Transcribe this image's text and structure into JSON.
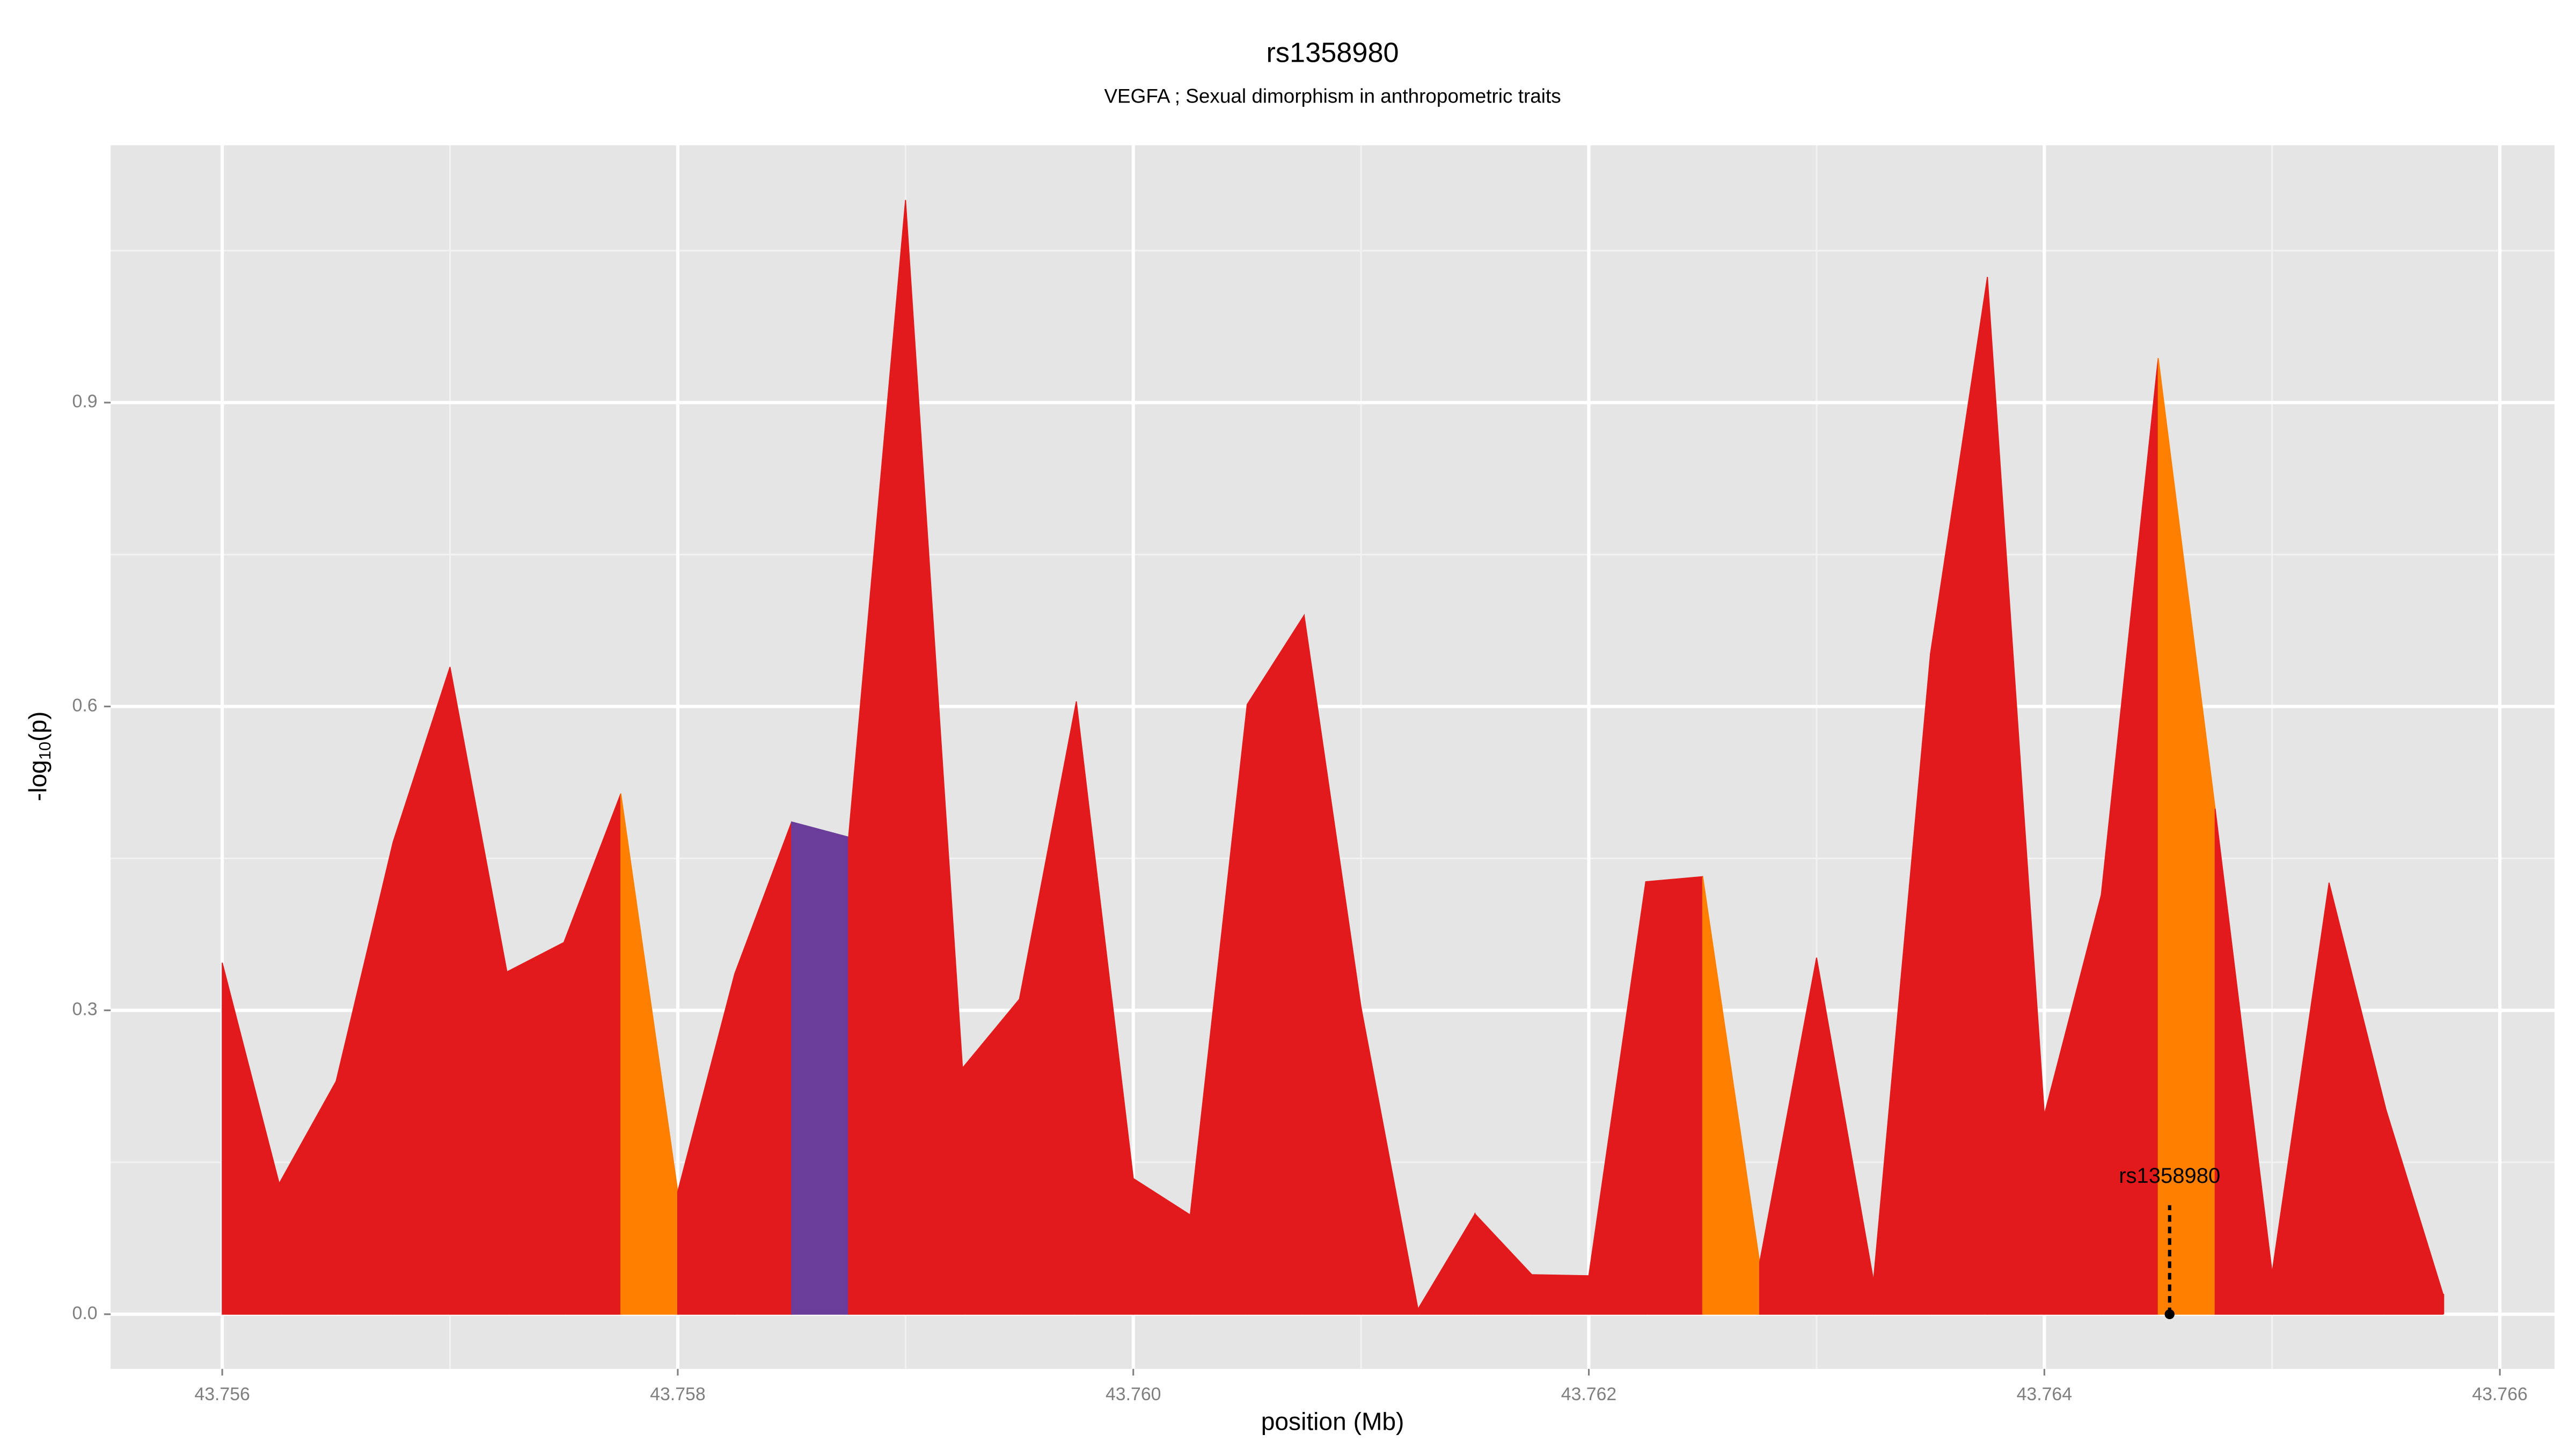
{
  "chart_data": {
    "type": "area",
    "title": "rs1358980",
    "subtitle": "VEGFA ; Sexual dimorphism in anthropometric traits",
    "x_label": "position (Mb)",
    "y_label": [
      "-log",
      "10",
      "(p)"
    ],
    "x": [
      43.756,
      43.75625,
      43.7565,
      43.75675,
      43.757,
      43.75725,
      43.7575,
      43.75775,
      43.758,
      43.75825,
      43.7585,
      43.75875,
      43.759,
      43.75925,
      43.7595,
      43.75975,
      43.76,
      43.76025,
      43.7605,
      43.76075,
      43.761,
      43.76125,
      43.7615,
      43.76175,
      43.762,
      43.76225,
      43.7625,
      43.76275,
      43.763,
      43.76325,
      43.7635,
      43.76375,
      43.764,
      43.76425,
      43.7645,
      43.76475,
      43.765,
      43.76525,
      43.7655,
      43.76575
    ],
    "values": [
      0.347,
      0.129,
      0.23,
      0.466,
      0.639,
      0.338,
      0.367,
      0.514,
      0.121,
      0.336,
      0.486,
      0.471,
      1.1,
      0.243,
      0.311,
      0.605,
      0.134,
      0.098,
      0.602,
      0.69,
      0.303,
      0.005,
      0.099,
      0.039,
      0.038,
      0.427,
      0.432,
      0.051,
      0.352,
      0.033,
      0.652,
      1.024,
      0.197,
      0.414,
      0.944,
      0.499,
      0.041,
      0.426,
      0.202,
      0.02
    ],
    "colors": [
      "#e31a1c",
      "#e31a1c",
      "#e31a1c",
      "#e31a1c",
      "#e31a1c",
      "#e31a1c",
      "#e31a1c",
      "#ff7f00",
      "#e31a1c",
      "#e31a1c",
      "#6a3d9a",
      "#e31a1c",
      "#e31a1c",
      "#e31a1c",
      "#e31a1c",
      "#e31a1c",
      "#e31a1c",
      "#e31a1c",
      "#e31a1c",
      "#e31a1c",
      "#e31a1c",
      "#e31a1c",
      "#e31a1c",
      "#e31a1c",
      "#e31a1c",
      "#e31a1c",
      "#ff7f00",
      "#e31a1c",
      "#e31a1c",
      "#e31a1c",
      "#e31a1c",
      "#e31a1c",
      "#e31a1c",
      "#e31a1c",
      "#ff7f00",
      "#e31a1c",
      "#e31a1c",
      "#e31a1c",
      "#e31a1c",
      "#e31a1c"
    ],
    "annotation": {
      "text": "rs1358980",
      "x": 43.76455
    },
    "xlim": [
      43.75551,
      43.76624
    ],
    "ylim": [
      -0.054,
      1.154
    ],
    "xticks": [
      43.756,
      43.758,
      {
        "value": 43.76,
        "label": "43.760"
      },
      43.762,
      43.764,
      43.766
    ],
    "yticks": [
      {
        "value": 0,
        "label": "0.0"
      },
      0.3,
      0.6,
      0.9
    ],
    "grid": true
  }
}
